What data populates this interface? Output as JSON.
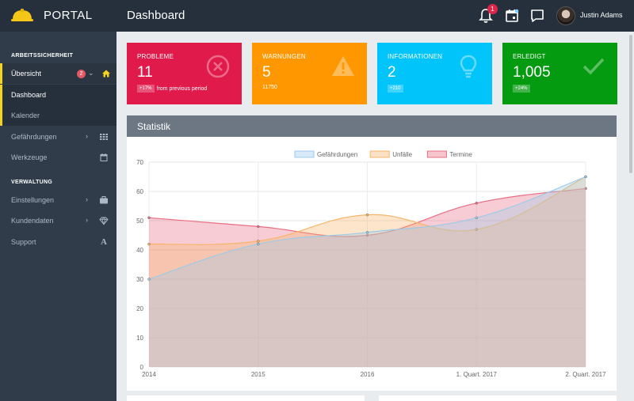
{
  "header": {
    "brand": "PORTAL",
    "title": "Dashboard",
    "notification_count": "1",
    "user_name": "Justin Adams",
    "icons": [
      "helmet-logo-icon",
      "bell-icon",
      "calendar-icon",
      "chat-icon"
    ]
  },
  "sidebar": {
    "section_safety": "ARBEITSSICHERHEIT",
    "overview": {
      "label": "Übersicht",
      "badge": "2"
    },
    "items": [
      {
        "label": "Dashboard"
      },
      {
        "label": "Kalender"
      },
      {
        "label": "Gefährdungen"
      },
      {
        "label": "Werkzeuge"
      }
    ],
    "section_admin": "VERWALTUNG",
    "admin_items": [
      {
        "label": "Einstellungen"
      },
      {
        "label": "Kundendaten"
      },
      {
        "label": "Support"
      }
    ]
  },
  "cards": [
    {
      "title": "PROBLEME",
      "value": "11",
      "tag": "+17%",
      "note": "from previous period",
      "color": "#e01b4c"
    },
    {
      "title": "WARNUNGEN",
      "value": "5",
      "note": "11750",
      "color": "#ff9800"
    },
    {
      "title": "INFORMATIONEN",
      "value": "2",
      "tag": "+210",
      "color": "#00c4fa"
    },
    {
      "title": "ERLEDIGT",
      "value": "1,005",
      "tag": "+24%",
      "color": "#049b10"
    }
  ],
  "panel": {
    "title": "Statistik"
  },
  "chart_data": {
    "type": "area",
    "categories": [
      "2014",
      "2015",
      "2016",
      "1. Quart. 2017",
      "2. Quart. 2017"
    ],
    "series": [
      {
        "name": "Gefährdungen",
        "values": [
          30,
          42,
          46,
          51,
          65
        ],
        "color": "#9ccbe8"
      },
      {
        "name": "Unfälle",
        "values": [
          42,
          43,
          52,
          47,
          65
        ],
        "color": "#f5b569"
      },
      {
        "name": "Termine",
        "values": [
          51,
          48,
          45,
          56,
          61
        ],
        "color": "#e86e83"
      }
    ],
    "ylim": [
      0,
      70
    ],
    "yticks": [
      "0",
      "10",
      "20",
      "30",
      "40",
      "50",
      "60",
      "70"
    ],
    "grid": true,
    "legend": "top"
  }
}
